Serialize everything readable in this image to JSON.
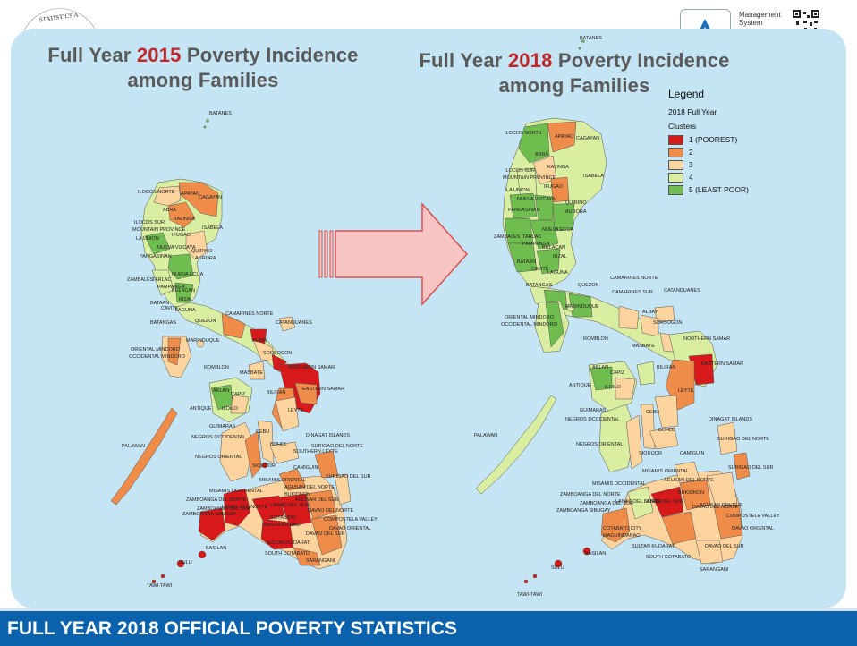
{
  "header": {
    "seal_text": "STATISTICS A",
    "mgmt_line1": "Management",
    "mgmt_line2": "System"
  },
  "map_2015": {
    "title_prefix": "Full Year ",
    "title_year": "2015",
    "title_suffix": " Poverty Incidence",
    "title_line2": "among Families",
    "labels": [
      "BATANES",
      "ILOCOS NORTE",
      "APAYAO",
      "CAGAYAN",
      "ABRA",
      "KALINGA",
      "ILOCOS SUR",
      "MOUNTAIN PROVINCE",
      "ISABELA",
      "LA UNION",
      "IFUGAO",
      "QUIRINO",
      "NUEVA VIZCAYA",
      "AURORA",
      "PANGASINAN",
      "NUEVA ECIJA",
      "ZAMBALES",
      "TARLAC",
      "PAMPANGA",
      "BULACAN",
      "BATAAN",
      "RIZAL",
      "CAVITE",
      "LAGUNA",
      "BATANGAS",
      "QUEZON",
      "CAMARINES NORTE",
      "CATANDUANES",
      "MARINDUQUE",
      "ALBAY",
      "ORIENTAL MINDORO",
      "OCCIDENTAL MINDORO",
      "SORSOGON",
      "NORTHERN SAMAR",
      "ROMBLON",
      "MASBATE",
      "EASTERN SAMAR",
      "AKLAN",
      "CAPIZ",
      "BILIRAN",
      "ANTIQUE",
      "ILOILO",
      "LEYTE",
      "GUIMARAS",
      "NEGROS OCCIDENTAL",
      "CEBU",
      "DINAGAT ISLANDS",
      "BOHOL",
      "PALAWAN",
      "SURIGAO DEL NORTE",
      "NEGROS ORIENTAL",
      "SIQUIJOR",
      "CAMIGUIN",
      "SOUTHERN LEYTE",
      "MISAMIS ORIENTAL",
      "AGUSAN DEL NORTE",
      "SURIGAO DEL SUR",
      "MISAMIS OCCIDENTAL",
      "AGUSAN DEL SUR",
      "ZAMBOANGA DEL NORTE",
      "BUKIDNON",
      "LANAO DEL NORTE",
      "ZAMBOANGA SIBUGAY",
      "LANAO DEL SUR",
      "DAVAO DEL NORTE",
      "COMPOSTELA VALLEY",
      "ZAMBOANGA DEL SUR",
      "COTABATO",
      "DAVAO ORIENTAL",
      "MAGUINDANAO",
      "DAVAO DEL SUR",
      "SULTAN KUDARAT",
      "BASILAN",
      "SOUTH COTABATO",
      "SARANGANI",
      "SULU",
      "TAWI-TAWI"
    ]
  },
  "map_2018": {
    "title_prefix": "Full Year ",
    "title_year": "2018",
    "title_suffix": " Poverty Incidence",
    "title_line2": "among Families",
    "labels": [
      "BATANES",
      "ILOCOS NORTE",
      "APAYAO",
      "CAGAYAN",
      "ABRA",
      "KALINGA",
      "ILOCOS SUR",
      "MOUNTAIN PROVINCE",
      "ISABELA",
      "LA UNION",
      "IFUGAO",
      "QUIRINO",
      "NUEVA VIZCAYA",
      "AURORA",
      "PANGASINAN",
      "NUEVA ECIJA",
      "ZAMBALES",
      "TARLAC",
      "PAMPANGA",
      "BULACAN",
      "BATAAN",
      "RIZAL",
      "CAVITE",
      "LAGUNA",
      "BATANGAS",
      "QUEZON",
      "CAMARINES NORTE",
      "CAMARINES SUR",
      "CATANDUANES",
      "MARINDUQUE",
      "ALBAY",
      "ORIENTAL MINDORO",
      "OCCIDENTAL MINDORO",
      "SORSOGON",
      "ROMBLON",
      "MASBATE",
      "NORTHERN SAMAR",
      "BILIRAN",
      "EASTERN SAMAR",
      "AKLAN",
      "CAPIZ",
      "ANTIQUE",
      "ILOILO",
      "LEYTE",
      "GUIMARAS",
      "NEGROS OCCIDENTAL",
      "CEBU",
      "DINAGAT ISLANDS",
      "BOHOL",
      "PALAWAN",
      "SURIGAO DEL NORTE",
      "NEGROS ORIENTAL",
      "SIQUIJOR",
      "CAMIGUIN",
      "SURIGAO DEL SUR",
      "MISAMIS ORIENTAL",
      "AGUSAN DEL NORTE",
      "MISAMIS OCCIDENTAL",
      "BUKIDNON",
      "ZAMBOANGA DEL NORTE",
      "LANAO DEL NORTE",
      "AGUSAN DEL SUR",
      "ZAMBOANGA DEL SUR",
      "LANAO DEL SUR",
      "DAVAO DEL NORTE",
      "ZAMBOANGA SIBUGAY",
      "COMPOSTELA VALLEY",
      "COTABATO CITY",
      "MAGUINDANAO",
      "DAVAO ORIENTAL",
      "SULTAN KUDARAT",
      "DAVAO DEL SUR",
      "BASILAN",
      "SOUTH COTABATO",
      "SARANGANI",
      "SULU",
      "TAWI-TAWI"
    ]
  },
  "legend": {
    "title": "Legend",
    "subtitle": "2018 Full Year",
    "clusters_label": "Clusters",
    "items": [
      {
        "label": "1 (POOREST)",
        "color": "#d7191c"
      },
      {
        "label": "2",
        "color": "#f08c4a"
      },
      {
        "label": "3",
        "color": "#fdd49e"
      },
      {
        "label": "4",
        "color": "#d9eea0"
      },
      {
        "label": "5 (LEAST POOR)",
        "color": "#6fbd4f"
      }
    ]
  },
  "arrow": {
    "fill": "#f8c4c4",
    "stroke": "#d9534f"
  },
  "footer": {
    "text": "FULL YEAR 2018 OFFICIAL POVERTY STATISTICS"
  }
}
